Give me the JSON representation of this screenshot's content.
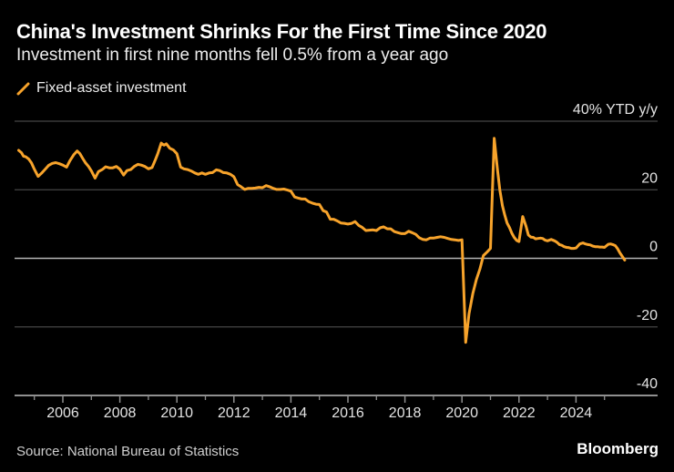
{
  "header": {
    "title": "China's Investment Shrinks For the First Time Since 2020",
    "subtitle": "Investment in first nine months fell 0.5% from a year ago"
  },
  "legend": {
    "series_label": "Fixed-asset investment"
  },
  "footer": {
    "source": "Source: National Bureau of Statistics",
    "brand": "Bloomberg"
  },
  "colors": {
    "background": "#000000",
    "accent": "#f7a32b",
    "gridline": "#454545",
    "zero_line": "#b4b4b4",
    "axis_line": "#909090",
    "tick": "#8f8f8f",
    "axis_label": "#e3e3e3",
    "title_text": "#ffffff"
  },
  "chart_data": {
    "type": "line",
    "title": "China's Investment Shrinks For the First Time Since 2020",
    "subtitle": "Investment in first nine months fell 0.5% from a year ago",
    "ylabel": "40% YTD y/y",
    "grid": true,
    "legend_position": "top-left",
    "x_range": [
      2004.3,
      2026.9
    ],
    "ylim": [
      -40,
      40
    ],
    "y_ticks": [
      {
        "value": 40,
        "label": "40% YTD y/y"
      },
      {
        "value": 20,
        "label": "20"
      },
      {
        "value": 0,
        "label": "0"
      },
      {
        "value": -20,
        "label": "-20"
      },
      {
        "value": -40,
        "label": "-40"
      }
    ],
    "x_ticks_labeled": [
      2006,
      2008,
      2010,
      2012,
      2014,
      2016,
      2018,
      2020,
      2022,
      2024
    ],
    "x_ticks_minor": [
      2005,
      2007,
      2009,
      2011,
      2013,
      2015,
      2017,
      2019,
      2021,
      2023,
      2025
    ],
    "series": [
      {
        "name": "Fixed-asset investment",
        "points": [
          [
            2004.45,
            31.5
          ],
          [
            2004.55,
            30.8
          ],
          [
            2004.62,
            29.8
          ],
          [
            2004.7,
            29.6
          ],
          [
            2004.8,
            29.0
          ],
          [
            2004.9,
            27.8
          ],
          [
            2005.0,
            26.0
          ],
          [
            2005.13,
            23.9
          ],
          [
            2005.25,
            24.8
          ],
          [
            2005.38,
            26.0
          ],
          [
            2005.5,
            27.1
          ],
          [
            2005.63,
            27.7
          ],
          [
            2005.75,
            27.9
          ],
          [
            2005.88,
            27.6
          ],
          [
            2006.0,
            27.2
          ],
          [
            2006.13,
            26.6
          ],
          [
            2006.25,
            28.5
          ],
          [
            2006.38,
            30.2
          ],
          [
            2006.5,
            31.3
          ],
          [
            2006.6,
            30.5
          ],
          [
            2006.7,
            29.1
          ],
          [
            2006.8,
            27.8
          ],
          [
            2006.9,
            26.8
          ],
          [
            2007.0,
            25.5
          ],
          [
            2007.13,
            23.4
          ],
          [
            2007.25,
            25.3
          ],
          [
            2007.38,
            25.9
          ],
          [
            2007.5,
            26.7
          ],
          [
            2007.63,
            26.4
          ],
          [
            2007.75,
            26.4
          ],
          [
            2007.88,
            26.8
          ],
          [
            2008.0,
            26.0
          ],
          [
            2008.13,
            24.3
          ],
          [
            2008.25,
            25.6
          ],
          [
            2008.38,
            25.9
          ],
          [
            2008.5,
            26.8
          ],
          [
            2008.63,
            27.4
          ],
          [
            2008.75,
            27.2
          ],
          [
            2008.88,
            26.8
          ],
          [
            2009.0,
            26.1
          ],
          [
            2009.13,
            26.5
          ],
          [
            2009.25,
            28.8
          ],
          [
            2009.33,
            30.5
          ],
          [
            2009.45,
            33.6
          ],
          [
            2009.55,
            33.0
          ],
          [
            2009.63,
            33.4
          ],
          [
            2009.75,
            32.1
          ],
          [
            2009.88,
            31.6
          ],
          [
            2010.0,
            30.5
          ],
          [
            2010.13,
            26.6
          ],
          [
            2010.25,
            26.1
          ],
          [
            2010.38,
            25.9
          ],
          [
            2010.5,
            25.5
          ],
          [
            2010.63,
            24.9
          ],
          [
            2010.75,
            24.5
          ],
          [
            2010.88,
            24.9
          ],
          [
            2011.0,
            24.5
          ],
          [
            2011.13,
            24.9
          ],
          [
            2011.25,
            25.0
          ],
          [
            2011.38,
            25.8
          ],
          [
            2011.5,
            25.6
          ],
          [
            2011.63,
            25.0
          ],
          [
            2011.75,
            24.9
          ],
          [
            2011.88,
            24.5
          ],
          [
            2012.0,
            23.8
          ],
          [
            2012.13,
            21.5
          ],
          [
            2012.25,
            20.9
          ],
          [
            2012.38,
            20.1
          ],
          [
            2012.5,
            20.4
          ],
          [
            2012.63,
            20.4
          ],
          [
            2012.75,
            20.5
          ],
          [
            2012.88,
            20.7
          ],
          [
            2013.0,
            20.6
          ],
          [
            2013.13,
            21.2
          ],
          [
            2013.25,
            20.9
          ],
          [
            2013.38,
            20.4
          ],
          [
            2013.5,
            20.1
          ],
          [
            2013.63,
            20.1
          ],
          [
            2013.75,
            20.2
          ],
          [
            2013.88,
            19.9
          ],
          [
            2014.0,
            19.6
          ],
          [
            2014.13,
            17.9
          ],
          [
            2014.25,
            17.6
          ],
          [
            2014.38,
            17.3
          ],
          [
            2014.5,
            17.3
          ],
          [
            2014.63,
            16.5
          ],
          [
            2014.75,
            16.1
          ],
          [
            2014.88,
            15.8
          ],
          [
            2015.0,
            15.7
          ],
          [
            2015.13,
            13.9
          ],
          [
            2015.25,
            13.5
          ],
          [
            2015.38,
            11.4
          ],
          [
            2015.5,
            11.4
          ],
          [
            2015.63,
            10.9
          ],
          [
            2015.75,
            10.3
          ],
          [
            2015.88,
            10.2
          ],
          [
            2016.0,
            10.0
          ],
          [
            2016.13,
            10.2
          ],
          [
            2016.25,
            10.7
          ],
          [
            2016.38,
            9.6
          ],
          [
            2016.5,
            9.0
          ],
          [
            2016.63,
            8.1
          ],
          [
            2016.75,
            8.2
          ],
          [
            2016.88,
            8.3
          ],
          [
            2017.0,
            8.1
          ],
          [
            2017.13,
            8.9
          ],
          [
            2017.25,
            9.2
          ],
          [
            2017.38,
            8.6
          ],
          [
            2017.5,
            8.6
          ],
          [
            2017.63,
            7.8
          ],
          [
            2017.75,
            7.5
          ],
          [
            2017.88,
            7.2
          ],
          [
            2018.0,
            7.2
          ],
          [
            2018.13,
            7.9
          ],
          [
            2018.25,
            7.5
          ],
          [
            2018.38,
            7.0
          ],
          [
            2018.5,
            6.0
          ],
          [
            2018.63,
            5.5
          ],
          [
            2018.75,
            5.4
          ],
          [
            2018.88,
            5.9
          ],
          [
            2019.0,
            5.9
          ],
          [
            2019.13,
            6.1
          ],
          [
            2019.25,
            6.3
          ],
          [
            2019.38,
            6.1
          ],
          [
            2019.5,
            5.8
          ],
          [
            2019.63,
            5.5
          ],
          [
            2019.75,
            5.4
          ],
          [
            2019.88,
            5.2
          ],
          [
            2020.0,
            5.4
          ],
          [
            2020.13,
            -24.5
          ],
          [
            2020.25,
            -16.1
          ],
          [
            2020.38,
            -10.3
          ],
          [
            2020.5,
            -6.3
          ],
          [
            2020.63,
            -3.1
          ],
          [
            2020.75,
            0.8
          ],
          [
            2020.88,
            1.8
          ],
          [
            2021.0,
            2.9
          ],
          [
            2021.13,
            35.0
          ],
          [
            2021.25,
            25.6
          ],
          [
            2021.33,
            19.9
          ],
          [
            2021.42,
            15.4
          ],
          [
            2021.5,
            12.6
          ],
          [
            2021.58,
            10.3
          ],
          [
            2021.67,
            8.9
          ],
          [
            2021.75,
            7.3
          ],
          [
            2021.83,
            6.1
          ],
          [
            2021.92,
            5.2
          ],
          [
            2022.0,
            4.9
          ],
          [
            2022.13,
            12.2
          ],
          [
            2022.25,
            9.3
          ],
          [
            2022.33,
            6.8
          ],
          [
            2022.42,
            6.2
          ],
          [
            2022.5,
            6.1
          ],
          [
            2022.58,
            5.7
          ],
          [
            2022.67,
            5.8
          ],
          [
            2022.75,
            5.9
          ],
          [
            2022.83,
            5.8
          ],
          [
            2022.92,
            5.3
          ],
          [
            2023.0,
            5.1
          ],
          [
            2023.13,
            5.5
          ],
          [
            2023.25,
            5.1
          ],
          [
            2023.33,
            4.7
          ],
          [
            2023.42,
            4.0
          ],
          [
            2023.5,
            3.8
          ],
          [
            2023.58,
            3.4
          ],
          [
            2023.67,
            3.2
          ],
          [
            2023.75,
            3.1
          ],
          [
            2023.83,
            2.9
          ],
          [
            2023.92,
            2.9
          ],
          [
            2024.0,
            3.0
          ],
          [
            2024.13,
            4.2
          ],
          [
            2024.25,
            4.5
          ],
          [
            2024.33,
            4.2
          ],
          [
            2024.42,
            4.0
          ],
          [
            2024.5,
            3.9
          ],
          [
            2024.58,
            3.6
          ],
          [
            2024.67,
            3.4
          ],
          [
            2024.75,
            3.4
          ],
          [
            2024.83,
            3.3
          ],
          [
            2024.92,
            3.3
          ],
          [
            2025.0,
            3.2
          ],
          [
            2025.13,
            4.1
          ],
          [
            2025.21,
            4.2
          ],
          [
            2025.29,
            4.0
          ],
          [
            2025.38,
            3.7
          ],
          [
            2025.46,
            2.8
          ],
          [
            2025.54,
            1.6
          ],
          [
            2025.63,
            0.5
          ],
          [
            2025.71,
            -0.5
          ]
        ]
      }
    ]
  }
}
